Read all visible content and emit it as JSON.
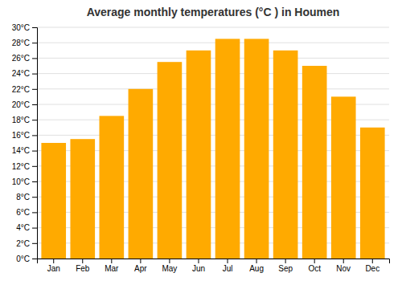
{
  "chart_data": {
    "type": "bar",
    "title": "Average monthly temperatures (°C ) in Houmen",
    "categories": [
      "Jan",
      "Feb",
      "Mar",
      "Apr",
      "May",
      "Jun",
      "Jul",
      "Aug",
      "Sep",
      "Oct",
      "Nov",
      "Dec"
    ],
    "values": [
      15,
      15.5,
      18.5,
      22,
      25.5,
      27,
      28.5,
      28.5,
      27,
      25,
      21,
      17
    ],
    "color": "#FFAA00",
    "ylim": [
      0,
      30
    ],
    "yticks": [
      {
        "value": 0,
        "label": "0°C"
      },
      {
        "value": 2,
        "label": "2°C"
      },
      {
        "value": 4,
        "label": "4°C"
      },
      {
        "value": 6,
        "label": "6°C"
      },
      {
        "value": 8,
        "label": "8°C"
      },
      {
        "value": 10,
        "label": "10°C"
      },
      {
        "value": 12,
        "label": "12°C"
      },
      {
        "value": 14,
        "label": "14°C"
      },
      {
        "value": 16,
        "label": "16°C"
      },
      {
        "value": 18,
        "label": "18°C"
      },
      {
        "value": 20,
        "label": "20°C"
      },
      {
        "value": 22,
        "label": "22°C"
      },
      {
        "value": 24,
        "label": "24°C"
      },
      {
        "value": 26,
        "label": "26°C"
      },
      {
        "value": 28,
        "label": "28°C"
      },
      {
        "value": 30,
        "label": "30°C"
      }
    ],
    "grid": true
  }
}
